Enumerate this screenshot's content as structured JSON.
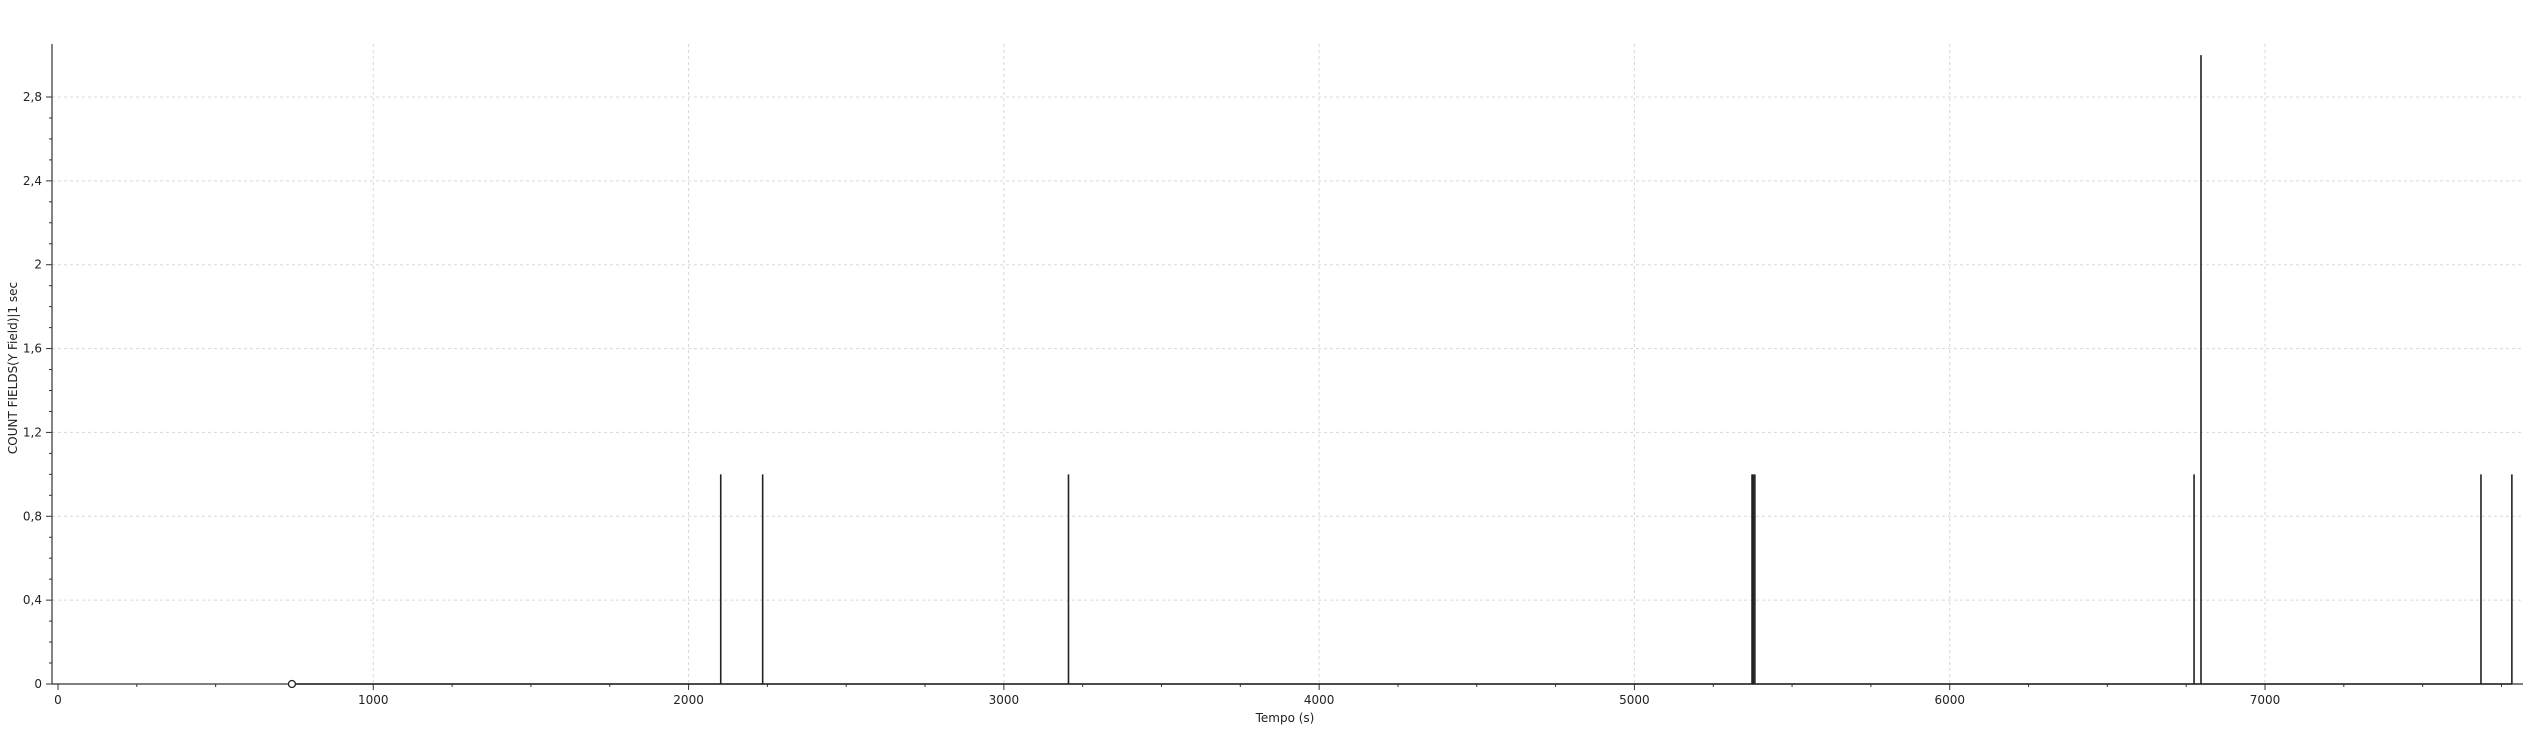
{
  "chart_data": {
    "type": "line",
    "title": "",
    "xlabel": "Tempo (s)",
    "ylabel": "COUNT FIELDS(Y Field)|1 sec",
    "xlim": [
      0,
      7800
    ],
    "ylim": [
      0,
      3
    ],
    "x_ticks": [
      0,
      1000,
      2000,
      3000,
      4000,
      5000,
      6000,
      7000
    ],
    "x_tick_labels": [
      "0",
      "1000",
      "2000",
      "3000",
      "4000",
      "5000",
      "6000",
      "7000"
    ],
    "y_ticks": [
      0,
      0.4,
      0.8,
      1.2,
      1.6,
      2,
      2.4,
      2.8
    ],
    "y_tick_labels": [
      "0",
      "0,4",
      "0,8",
      "1,2",
      "1,6",
      "2",
      "2,4",
      "2,8"
    ],
    "grid": true,
    "legend": "none",
    "colors": {
      "series": "#222222",
      "grid": "#d8d8d8",
      "axis": "#333333"
    },
    "series": [
      {
        "marker": {
          "x": 742,
          "y": 0,
          "shape": "open-circle"
        },
        "spikes": [
          {
            "x": 2102,
            "y": 1
          },
          {
            "x": 2235,
            "y": 1
          },
          {
            "x": 3205,
            "y": 1
          },
          {
            "x": 5373,
            "y": 1
          },
          {
            "x": 5377,
            "y": 1
          },
          {
            "x": 5382,
            "y": 1
          },
          {
            "x": 6775,
            "y": 1
          },
          {
            "x": 6797,
            "y": 3
          },
          {
            "x": 7685,
            "y": 1
          },
          {
            "x": 7783,
            "y": 1
          }
        ]
      }
    ]
  }
}
